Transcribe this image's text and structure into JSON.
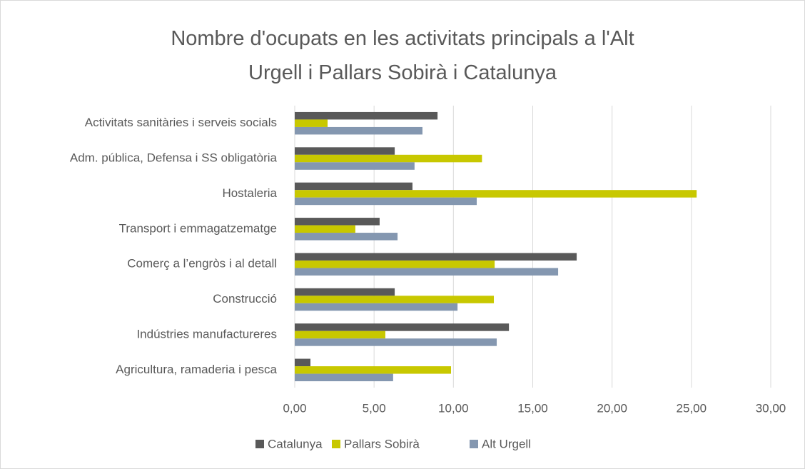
{
  "chart_data": {
    "type": "hbar",
    "title": "Nombre d'ocupats en les activitats principals a l'Alt Urgell i Pallars Sobirà i Catalunya",
    "categories": [
      "Activitats sanitàries i serveis socials",
      "Adm. pública, Defensa i SS obligatòria",
      "Hostaleria",
      "Transport i emmagatzematge",
      "Comerç a l’engròs i al detall",
      "Construcció",
      "Indústries manufactureres",
      "Agricultura, ramaderia i pesca"
    ],
    "series": [
      {
        "name": "Catalunya",
        "color": "#595959",
        "values": [
          9.0,
          6.3,
          7.42,
          5.35,
          17.77,
          6.3,
          13.5,
          0.99
        ]
      },
      {
        "name": "Pallars Sobirà",
        "color": "#c8c800",
        "values": [
          2.07,
          11.8,
          25.33,
          3.82,
          12.6,
          12.55,
          5.71,
          9.85
        ]
      },
      {
        "name": "Alt Urgell",
        "color": "#8497b0",
        "values": [
          8.05,
          7.55,
          11.47,
          6.48,
          16.6,
          10.26,
          12.73,
          6.2
        ]
      }
    ],
    "xlim": [
      0,
      30
    ],
    "xticks": [
      {
        "value": 0,
        "label": "0,00"
      },
      {
        "value": 5,
        "label": "5,00"
      },
      {
        "value": 10,
        "label": "10,00"
      },
      {
        "value": 15,
        "label": "15,00"
      },
      {
        "value": 20,
        "label": "20,00"
      },
      {
        "value": 25,
        "label": "25,00"
      },
      {
        "value": 30,
        "label": "30,00"
      }
    ],
    "grid": true,
    "legend": "bottom"
  }
}
